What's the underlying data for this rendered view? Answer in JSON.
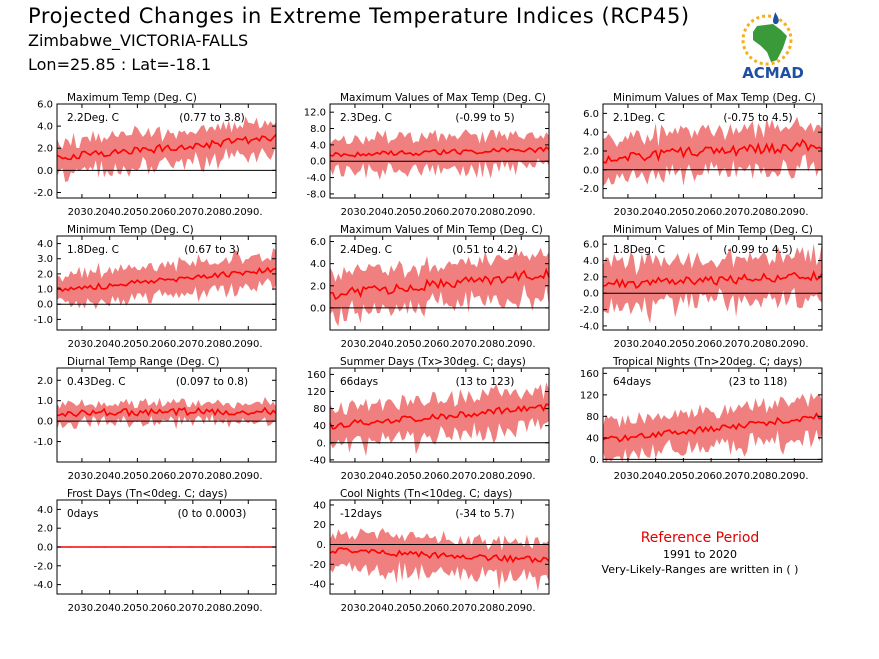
{
  "header": {
    "title": "Projected Changes in Extreme Temperature Indices (RCP45)",
    "subtitle": "Zimbabwe_VICTORIA-FALLS",
    "coords": "Lon=25.85 : Lat=-18.1"
  },
  "logo": {
    "text": "ACMAD",
    "colors": {
      "green": "#3a9a3a",
      "blue": "#1e4fa0",
      "sun": "#f2b01e"
    }
  },
  "reference": {
    "title": "Reference Period",
    "period": "1991 to 2020",
    "note": "Very-Likely-Ranges are written in ( )"
  },
  "colors": {
    "band": "#f08080",
    "line": "#ff0000",
    "zero": "#000000",
    "ref_title": "#e00000"
  },
  "chart_data": [
    {
      "type": "area",
      "title": "Maximum Temp (Deg. C)",
      "value_text": "2.2Deg. C",
      "range_text": "(0.77 to 3.8)",
      "x_start": 2021,
      "x_end": 2100,
      "xticks": [
        "2030.",
        "2040.",
        "2050.",
        "2060.",
        "2070.",
        "2080.",
        "2090."
      ],
      "ylim": [
        -2.5,
        6.0
      ],
      "yticks": [
        "-2.0",
        "0.0",
        "2.0",
        "4.0",
        "6.0"
      ],
      "mean_start": 1.2,
      "mean_end": 2.9,
      "band_width": 1.5,
      "noise": 0.35,
      "grid": false
    },
    {
      "type": "area",
      "title": "Maximum Values of Max Temp (Deg. C)",
      "value_text": "2.3Deg. C",
      "range_text": "(-0.99 to 5)",
      "x_start": 2021,
      "x_end": 2100,
      "xticks": [
        "2030.",
        "2040.",
        "2050.",
        "2060.",
        "2070.",
        "2080.",
        "2090."
      ],
      "ylim": [
        -9.0,
        14.0
      ],
      "yticks": [
        "-8.0",
        "-4.0",
        "0.0",
        "4.0",
        "8.0",
        "12.0"
      ],
      "mean_start": 1.5,
      "mean_end": 2.9,
      "band_width": 4.0,
      "noise": 0.6,
      "grid": false
    },
    {
      "type": "area",
      "title": "Minimum Values of Max Temp (Deg. C)",
      "value_text": "2.1Deg. C",
      "range_text": "(-0.75 to 4.5)",
      "x_start": 2021,
      "x_end": 2100,
      "xticks": [
        "2030.",
        "2040.",
        "2050.",
        "2060.",
        "2070.",
        "2080.",
        "2090."
      ],
      "ylim": [
        -3.0,
        7.0
      ],
      "yticks": [
        "-2.0",
        "0.0",
        "2.0",
        "4.0",
        "6.0"
      ],
      "mean_start": 1.2,
      "mean_end": 2.7,
      "band_width": 2.2,
      "noise": 0.6,
      "grid": false
    },
    {
      "type": "area",
      "title": "Minimum Temp (Deg. C)",
      "value_text": "1.8Deg. C",
      "range_text": "(0.67 to 3)",
      "x_start": 2021,
      "x_end": 2100,
      "xticks": [
        "2030.",
        "2040.",
        "2050.",
        "2060.",
        "2070.",
        "2080.",
        "2090."
      ],
      "ylim": [
        -1.7,
        4.5
      ],
      "yticks": [
        "-1.0",
        "0.0",
        "1.0",
        "2.0",
        "3.0",
        "4.0"
      ],
      "mean_start": 0.9,
      "mean_end": 2.3,
      "band_width": 1.1,
      "noise": 0.2,
      "grid": false
    },
    {
      "type": "area",
      "title": "Maximum Values of Min Temp (Deg. C)",
      "value_text": "2.4Deg. C",
      "range_text": "(0.51 to 4.2)",
      "x_start": 2021,
      "x_end": 2100,
      "xticks": [
        "2030.",
        "2040.",
        "2050.",
        "2060.",
        "2070.",
        "2080.",
        "2090."
      ],
      "ylim": [
        -2.0,
        6.5
      ],
      "yticks": [
        "0.0",
        "2.0",
        "4.0",
        "6.0"
      ],
      "mean_start": 1.2,
      "mean_end": 3.1,
      "band_width": 1.9,
      "noise": 0.45,
      "grid": false
    },
    {
      "type": "area",
      "title": "Minimum Values of Min Temp (Deg. C)",
      "value_text": "1.8Deg. C",
      "range_text": "(-0.99 to 4.5)",
      "x_start": 2021,
      "x_end": 2100,
      "xticks": [
        "2030.",
        "2040.",
        "2050.",
        "2060.",
        "2070.",
        "2080.",
        "2090."
      ],
      "ylim": [
        -4.5,
        7.0
      ],
      "yticks": [
        "-4.0",
        "-2.0",
        "0.0",
        "2.0",
        "4.0",
        "6.0"
      ],
      "mean_start": 1.0,
      "mean_end": 2.2,
      "band_width": 2.8,
      "noise": 0.6,
      "grid": false
    },
    {
      "type": "area",
      "title": "Diurnal Temp Range (Deg. C)",
      "value_text": "0.43Deg. C",
      "range_text": "(0.097 to 0.8)",
      "x_start": 2021,
      "x_end": 2100,
      "xticks": [
        "2030.",
        "2040.",
        "2050.",
        "2060.",
        "2070.",
        "2080.",
        "2090."
      ],
      "ylim": [
        -2.0,
        2.6
      ],
      "yticks": [
        "-1.0",
        "0.0",
        "1.0",
        "2.0"
      ],
      "mean_start": 0.4,
      "mean_end": 0.5,
      "band_width": 0.45,
      "noise": 0.18,
      "grid": false
    },
    {
      "type": "area",
      "title": "Summer Days (Tx>30deg. C; days)",
      "value_text": "66days",
      "range_text": "(13 to 123)",
      "x_start": 2021,
      "x_end": 2100,
      "xticks": [
        "2030.",
        "2040.",
        "2050.",
        "2060.",
        "2070.",
        "2080.",
        "2090."
      ],
      "ylim": [
        -45,
        175
      ],
      "yticks": [
        "-40",
        "0.",
        "40",
        "80",
        "120",
        "160"
      ],
      "mean_start": 40,
      "mean_end": 85,
      "band_width": 45,
      "noise": 8,
      "grid": false
    },
    {
      "type": "area",
      "title": "Tropical Nights (Tn>20deg. C; days)",
      "value_text": "64days",
      "range_text": "(23 to 118)",
      "x_start": 2021,
      "x_end": 2100,
      "xticks": [
        "2030.",
        "2040.",
        "2050.",
        "2060.",
        "2070.",
        "2080.",
        "2090."
      ],
      "ylim": [
        -5,
        170
      ],
      "yticks": [
        "0.",
        "40",
        "80",
        "120",
        "160"
      ],
      "mean_start": 35,
      "mean_end": 80,
      "band_width": 35,
      "noise": 6,
      "grid": false
    },
    {
      "type": "area",
      "title": "Frost Days (Tn<0deg. C; days)",
      "value_text": "0days",
      "range_text": "(0 to 0.0003)",
      "x_start": 2021,
      "x_end": 2100,
      "xticks": [
        "2030.",
        "2040.",
        "2050.",
        "2060.",
        "2070.",
        "2080.",
        "2090."
      ],
      "ylim": [
        -5.0,
        5.0
      ],
      "yticks": [
        "-4.0",
        "-2.0",
        "0.0",
        "2.0",
        "4.0"
      ],
      "mean_start": 0,
      "mean_end": 0,
      "band_width": 0.05,
      "noise": 0,
      "grid": false
    },
    {
      "type": "area",
      "title": "Cool Nights (Tn<10deg. C; days)",
      "value_text": "-12days",
      "range_text": "(-34 to 5.7)",
      "x_start": 2021,
      "x_end": 2100,
      "xticks": [
        "2030.",
        "2040.",
        "2050.",
        "2060.",
        "2070.",
        "2080.",
        "2090."
      ],
      "ylim": [
        -50,
        45
      ],
      "yticks": [
        "-40",
        "-20",
        "0.",
        "20",
        "40"
      ],
      "mean_start": -6,
      "mean_end": -16,
      "band_width": 18,
      "noise": 3,
      "grid": false
    }
  ]
}
